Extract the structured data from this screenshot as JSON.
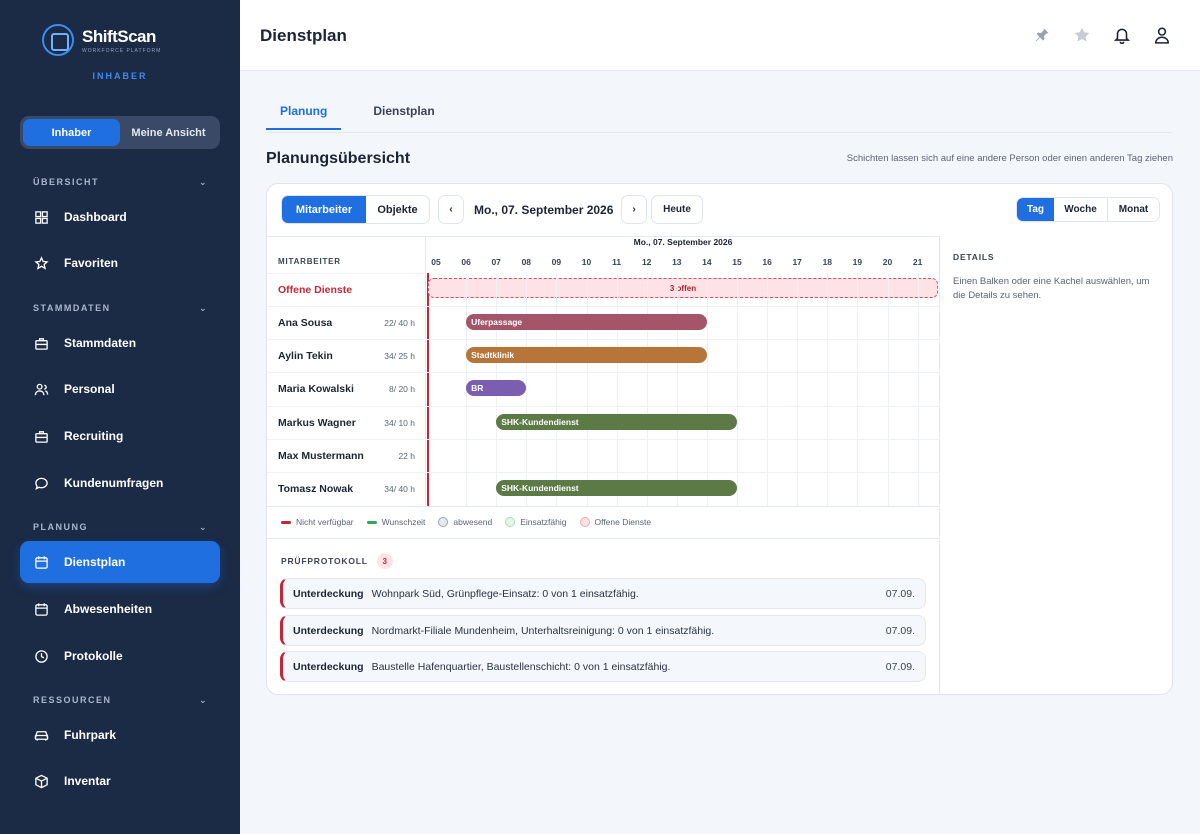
{
  "brand": {
    "name": "ShiftScan",
    "tagline": "WORKFORCE PLATFORM",
    "role": "INHABER"
  },
  "view_toggle": {
    "owner": "Inhaber",
    "mine": "Meine Ansicht"
  },
  "sidebar": {
    "sections": [
      {
        "label": "ÜBERSICHT",
        "items": [
          "Dashboard",
          "Favoriten"
        ]
      },
      {
        "label": "STAMMDATEN",
        "items": [
          "Stammdaten",
          "Personal",
          "Recruiting",
          "Kundenumfragen"
        ]
      },
      {
        "label": "PLANUNG",
        "items": [
          "Dienstplan",
          "Abwesenheiten",
          "Protokolle"
        ]
      },
      {
        "label": "RESSOURCEN",
        "items": [
          "Fuhrpark",
          "Inventar"
        ]
      }
    ],
    "active": "Dienstplan"
  },
  "header": {
    "title": "Dienstplan"
  },
  "tabs": [
    "Planung",
    "Dienstplan"
  ],
  "main": {
    "title": "Planungsübersicht",
    "hint": "Schichten lassen sich auf eine andere Person oder einen anderen Tag ziehen"
  },
  "toolbar": {
    "mode": [
      "Mitarbeiter",
      "Objekte"
    ],
    "prev": "‹",
    "next": "›",
    "date": "Mo., 07. September 2026",
    "today": "Heute",
    "range": [
      "Tag",
      "Woche",
      "Monat"
    ]
  },
  "timeline": {
    "column_header": "MITARBEITER",
    "date": "Mo., 07. September 2026",
    "hours": [
      "05",
      "06",
      "07",
      "08",
      "09",
      "10",
      "11",
      "12",
      "13",
      "14",
      "15",
      "16",
      "17",
      "18",
      "19",
      "20",
      "21"
    ],
    "open_label": "Offene Dienste",
    "open_bar": "3 offen",
    "employees": [
      {
        "name": "Ana Sousa",
        "hours": "22/ 40 h",
        "shift": "Uferpassage",
        "start": 6,
        "end": 14,
        "color": "#a4556a"
      },
      {
        "name": "Aylin Tekin",
        "hours": "34/ 25 h",
        "shift": "Stadtklinik",
        "start": 6,
        "end": 14,
        "color": "#b8753a"
      },
      {
        "name": "Maria Kowalski",
        "hours": "8/ 20 h",
        "shift": "BR",
        "start": 6,
        "end": 8,
        "color": "#7b5eb0"
      },
      {
        "name": "Markus Wagner",
        "hours": "34/ 10 h",
        "shift": "SHK-Kundendienst",
        "start": 7,
        "end": 15,
        "color": "#5b7a45"
      },
      {
        "name": "Max Mustermann",
        "hours": "22 h",
        "shift": "",
        "start": null,
        "end": null,
        "color": ""
      },
      {
        "name": "Tomasz Nowak",
        "hours": "34/ 40 h",
        "shift": "SHK-Kundendienst",
        "start": 7,
        "end": 15,
        "color": "#5b7a45"
      }
    ]
  },
  "legend": [
    "Nicht verfügbar",
    "Wunschzeit",
    "abwesend",
    "Einsatzfähig",
    "Offene Dienste"
  ],
  "details": {
    "title": "DETAILS",
    "text": "Einen Balken oder eine Kachel auswählen, um die Details zu sehen."
  },
  "protocol": {
    "title": "PRÜFPROTOKOLL",
    "count": "3",
    "items": [
      {
        "type": "Unterdeckung",
        "text": "Wohnpark Süd, Grünpflege-Einsatz: 0 von 1 einsatzfähig.",
        "date": "07.09."
      },
      {
        "type": "Unterdeckung",
        "text": "Nordmarkt-Filiale Mundenheim, Unterhaltsreinigung: 0 von 1 einsatzfähig.",
        "date": "07.09."
      },
      {
        "type": "Unterdeckung",
        "text": "Baustelle Hafenquartier, Baustellenschicht: 0 von 1 einsatzfähig.",
        "date": "07.09."
      }
    ]
  },
  "colors": {
    "accent": "#1f6fe0",
    "sidebar": "#1b2a45",
    "danger": "#c0283a"
  }
}
